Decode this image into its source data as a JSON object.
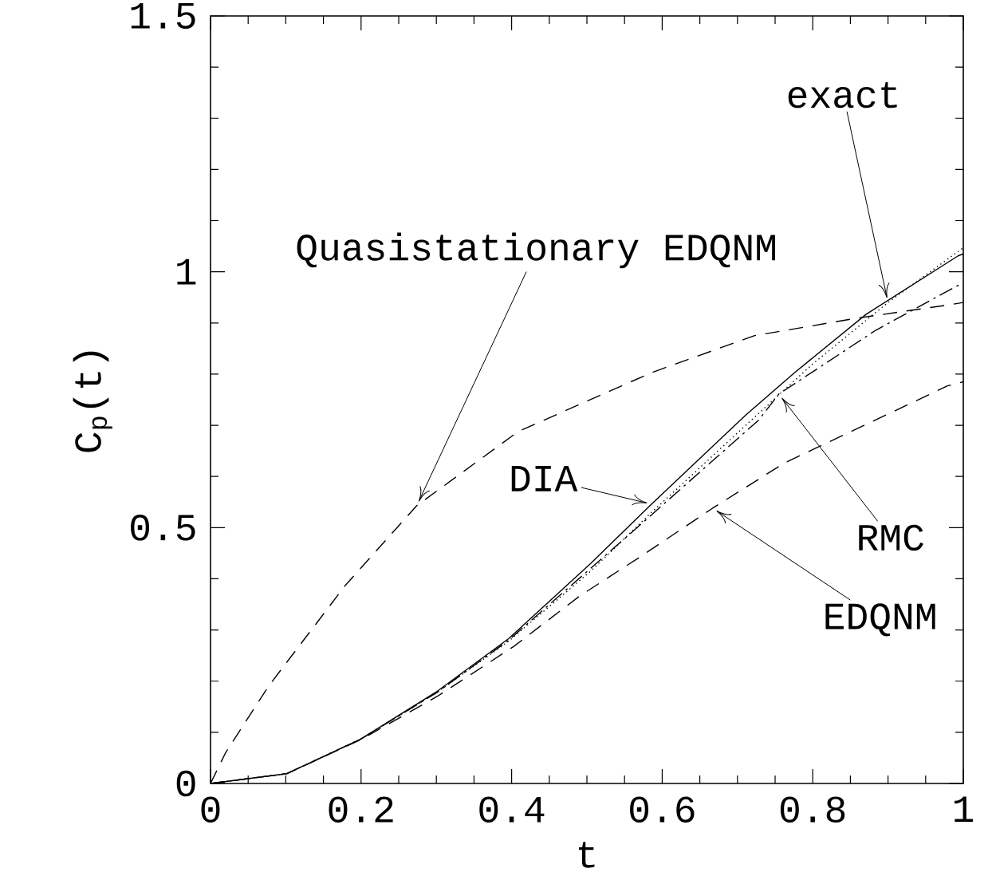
{
  "chart_data": {
    "type": "line",
    "xlabel": "t",
    "ylabel": "C$_{p}$(t)",
    "xlim": [
      0,
      1
    ],
    "ylim": [
      0,
      1.5
    ],
    "xticks": [
      0,
      0.2,
      0.4,
      0.6,
      0.8,
      1
    ],
    "yticks": [
      0,
      0.5,
      1,
      1.5
    ],
    "grid": false,
    "marker": "none",
    "series": [
      {
        "color": "#000000",
        "line_style": "dashed",
        "x": [
          0,
          0.02,
          0.077,
          0.179,
          0.274,
          0.409,
          0.586,
          0.722,
          0.857,
          0.979,
          1
        ],
        "values": [
          0,
          0.06,
          0.19,
          0.387,
          0.543,
          0.688,
          0.803,
          0.875,
          0.909,
          0.935,
          0.94
        ]
      },
      {
        "color": "#000000",
        "line_style": "solid",
        "x": [
          0,
          0.101,
          0.2,
          0.301,
          0.396,
          0.505,
          0.586,
          0.711,
          0.776,
          0.871,
          0.993,
          1
        ],
        "values": [
          0,
          0.019,
          0.087,
          0.18,
          0.283,
          0.43,
          0.546,
          0.72,
          0.803,
          0.917,
          1.031,
          1.035
        ]
      },
      {
        "color": "#000000",
        "line_style": "dotted",
        "x": [
          0,
          0.101,
          0.2,
          0.301,
          0.396,
          0.505,
          0.586,
          0.711,
          0.8,
          0.9,
          1
        ],
        "values": [
          0,
          0.019,
          0.087,
          0.178,
          0.278,
          0.415,
          0.53,
          0.7,
          0.82,
          0.94,
          1.047
        ]
      },
      {
        "color": "#000000",
        "line_style": "dashdotted",
        "x": [
          0,
          0.101,
          0.2,
          0.301,
          0.396,
          0.552,
          0.728,
          0.755,
          0.884,
          1
        ],
        "values": [
          0,
          0.019,
          0.087,
          0.178,
          0.28,
          0.481,
          0.71,
          0.761,
          0.886,
          0.979
        ]
      },
      {
        "color": "#000000",
        "line_style": "dashed",
        "x": [
          0,
          0.101,
          0.2,
          0.301,
          0.403,
          0.491,
          0.573,
          0.667,
          0.762,
          0.979,
          1
        ],
        "values": [
          0,
          0.019,
          0.086,
          0.17,
          0.268,
          0.367,
          0.445,
          0.538,
          0.626,
          0.777,
          0.785
        ]
      }
    ],
    "annotations": [
      {
        "text": "exact",
        "x": 0.9,
        "y": 0.94
      },
      {
        "text": "Quasistationary EDQNM",
        "x": 0.274,
        "y": 0.543
      },
      {
        "text": "DIA",
        "x": 0.586,
        "y": 0.546
      },
      {
        "text": "RMC",
        "x": 0.755,
        "y": 0.761
      },
      {
        "text": "EDQNM",
        "x": 0.667,
        "y": 0.538
      }
    ]
  }
}
